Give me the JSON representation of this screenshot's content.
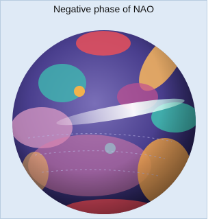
{
  "title": "Negative phase of NAO"
}
